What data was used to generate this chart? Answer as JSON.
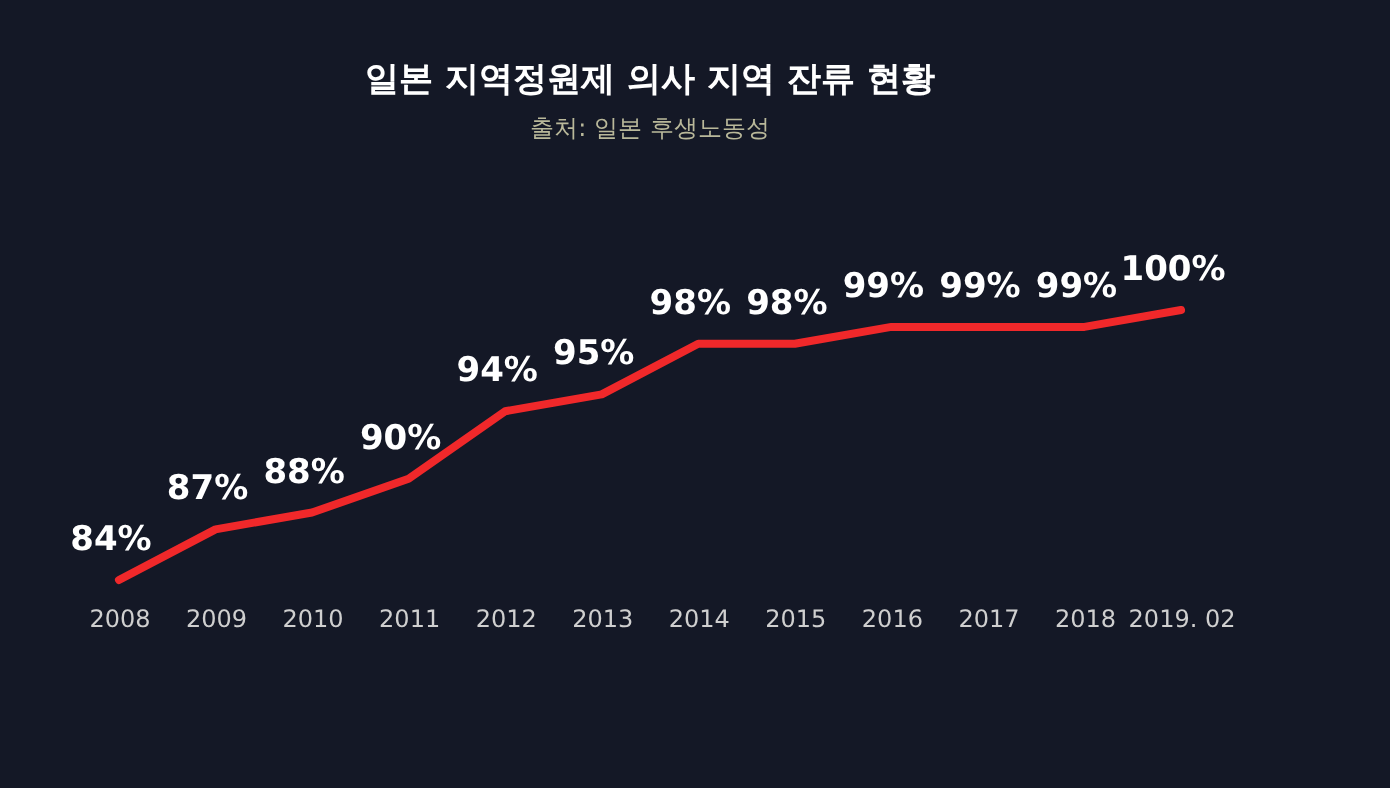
{
  "chart_data": {
    "type": "line",
    "title": "일본 지역정원제 의사 지역 잔류 현황",
    "subtitle": "출처: 일본 후생노동성",
    "categories": [
      "2008",
      "2009",
      "2010",
      "2011",
      "2012",
      "2013",
      "2014",
      "2015",
      "2016",
      "2017",
      "2018",
      "2019. 02"
    ],
    "series": [
      {
        "color": "#f0282a",
        "values": [
          84,
          87,
          88,
          90,
          94,
          95,
          98,
          98,
          99,
          99,
          99,
          100
        ],
        "value_labels": [
          "84%",
          "87%",
          "88%",
          "90%",
          "94%",
          "95%",
          "98%",
          "98%",
          "99%",
          "99%",
          "99%",
          "100%"
        ]
      }
    ],
    "legend": false,
    "grid": false,
    "marker": "none",
    "line_style": "solid"
  }
}
